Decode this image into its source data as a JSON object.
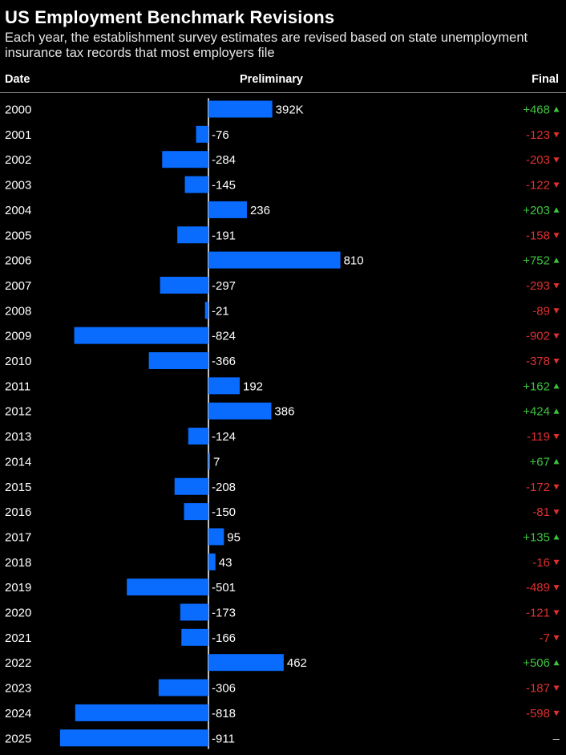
{
  "header": {
    "title": "US Employment Benchmark Revisions",
    "subtitle": "Each year, the establishment survey estimates are revised based on state unemployment insurance tax records that most employers file",
    "col_date": "Date",
    "col_preliminary": "Preliminary",
    "col_final": "Final"
  },
  "colors": {
    "bar": "#0a6cff",
    "positive": "#3ec33e",
    "negative": "#e03030",
    "background": "#000000"
  },
  "chart_data": {
    "type": "bar",
    "orientation": "horizontal",
    "title": "US Employment Benchmark Revisions",
    "categories": [
      "2000",
      "2001",
      "2002",
      "2003",
      "2004",
      "2005",
      "2006",
      "2007",
      "2008",
      "2009",
      "2010",
      "2011",
      "2012",
      "2013",
      "2014",
      "2015",
      "2016",
      "2017",
      "2018",
      "2019",
      "2020",
      "2021",
      "2022",
      "2023",
      "2024",
      "2025"
    ],
    "series": [
      {
        "name": "Preliminary",
        "values": [
          392,
          -76,
          -284,
          -145,
          236,
          -191,
          810,
          -297,
          -21,
          -824,
          -366,
          192,
          386,
          -124,
          7,
          -208,
          -150,
          95,
          43,
          -501,
          -173,
          -166,
          462,
          -306,
          -818,
          -911
        ],
        "labels": [
          "392K",
          "-76",
          "-284",
          "-145",
          "236",
          "-191",
          "810",
          "-297",
          "-21",
          "-824",
          "-366",
          "192",
          "386",
          "-124",
          "7",
          "-208",
          "-150",
          "95",
          "43",
          "-501",
          "-173",
          "-166",
          "462",
          "-306",
          "-818",
          "-911"
        ]
      },
      {
        "name": "Final",
        "values": [
          468,
          -123,
          -203,
          -122,
          203,
          -158,
          752,
          -293,
          -89,
          -902,
          -378,
          162,
          424,
          -119,
          67,
          -172,
          -81,
          135,
          -16,
          -489,
          -121,
          -7,
          506,
          -187,
          -598,
          null
        ],
        "labels": [
          "+468",
          "-123",
          "-203",
          "-122",
          "+203",
          "-158",
          "+752",
          "-293",
          "-89",
          "-902",
          "-378",
          "+162",
          "+424",
          "-119",
          "+67",
          "-172",
          "-81",
          "+135",
          "-16",
          "-489",
          "-121",
          "-7",
          "+506",
          "-187",
          "-598",
          "–"
        ]
      }
    ],
    "xlim": [
      -911,
      810
    ],
    "grid": false,
    "legend": "none"
  }
}
